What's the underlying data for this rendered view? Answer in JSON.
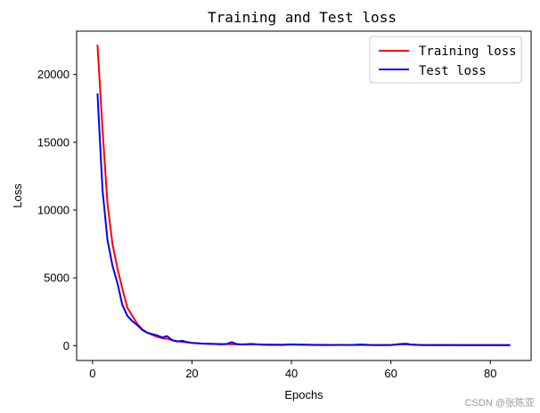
{
  "chart_data": {
    "type": "line",
    "title": "Training and Test loss",
    "xlabel": "Epochs",
    "ylabel": "Loss",
    "xlim": [
      -3.2,
      88.2
    ],
    "ylim": [
      -1100,
      23200
    ],
    "xticks": [
      0,
      20,
      40,
      60,
      80
    ],
    "yticks": [
      0,
      5000,
      10000,
      15000,
      20000
    ],
    "grid": false,
    "legend_position": "top-right",
    "series": [
      {
        "name": "Training loss",
        "color": "#ff0000",
        "x": [
          1,
          2,
          3,
          4,
          5,
          6,
          7,
          8,
          9,
          10,
          11,
          12,
          13,
          14,
          15,
          16,
          17,
          18,
          19,
          20,
          22,
          24,
          26,
          28,
          30,
          32,
          34,
          36,
          38,
          40,
          42,
          44,
          46,
          48,
          50,
          52,
          54,
          56,
          58,
          60,
          62,
          63,
          64,
          66,
          68,
          70,
          72,
          74,
          76,
          78,
          80,
          82,
          84
        ],
        "y": [
          22200,
          16000,
          10500,
          7500,
          5700,
          4200,
          2800,
          2200,
          1600,
          1200,
          950,
          800,
          650,
          550,
          500,
          400,
          330,
          280,
          240,
          200,
          150,
          130,
          110,
          100,
          90,
          85,
          80,
          75,
          70,
          65,
          60,
          58,
          55,
          52,
          50,
          48,
          46,
          45,
          44,
          42,
          120,
          150,
          80,
          45,
          42,
          40,
          40,
          39,
          38,
          38,
          37,
          36,
          35
        ]
      },
      {
        "name": "Test loss",
        "color": "#0000ff",
        "x": [
          1,
          2,
          3,
          4,
          5,
          6,
          7,
          8,
          9,
          10,
          11,
          12,
          13,
          14,
          15,
          16,
          17,
          18,
          19,
          20,
          22,
          24,
          26,
          27,
          28,
          29,
          30,
          32,
          34,
          36,
          38,
          40,
          42,
          44,
          46,
          48,
          50,
          52,
          54,
          56,
          58,
          60,
          62,
          63,
          64,
          66,
          68,
          70,
          72,
          74,
          76,
          78,
          80,
          82,
          84
        ],
        "y": [
          18600,
          11500,
          7800,
          5900,
          4600,
          3000,
          2200,
          1800,
          1500,
          1150,
          950,
          850,
          750,
          600,
          700,
          400,
          300,
          350,
          250,
          200,
          150,
          120,
          100,
          120,
          250,
          110,
          80,
          120,
          60,
          50,
          50,
          90,
          60,
          50,
          45,
          40,
          50,
          40,
          80,
          40,
          35,
          40,
          100,
          110,
          60,
          40,
          35,
          35,
          30,
          35,
          30,
          30,
          30,
          30,
          35
        ]
      }
    ]
  },
  "watermark": "CSDN @张陈亚"
}
